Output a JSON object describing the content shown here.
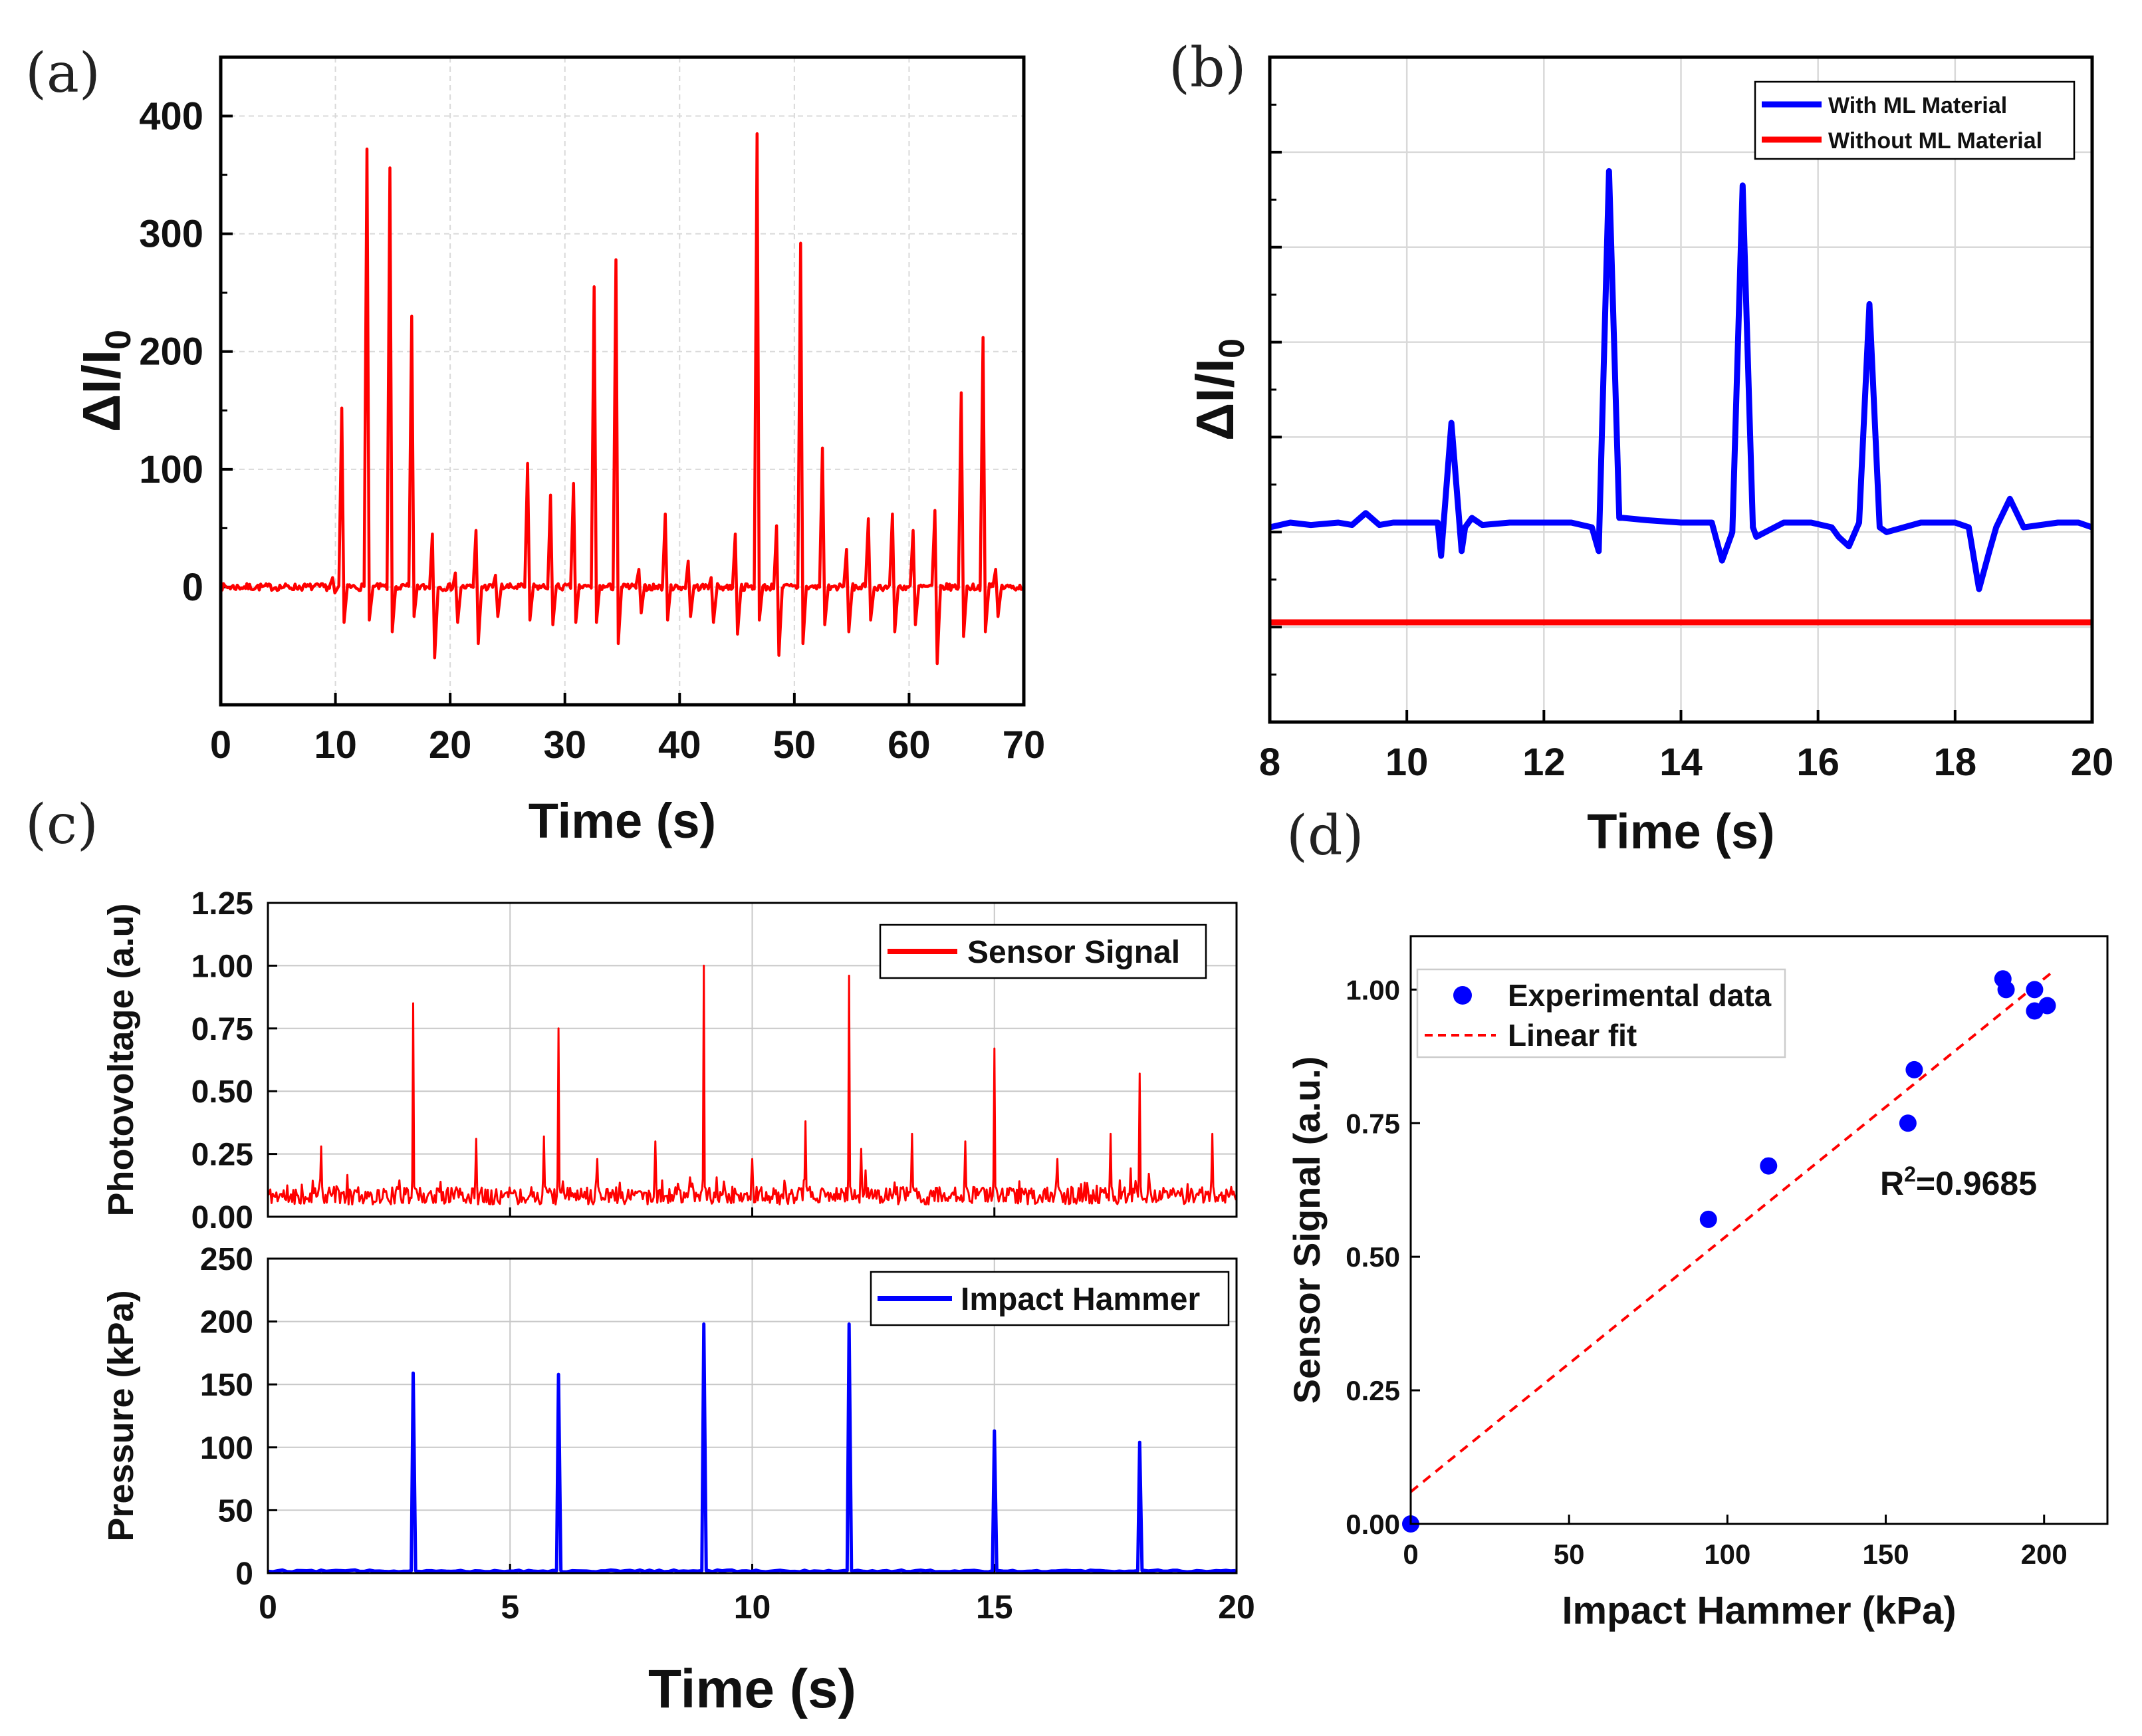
{
  "panel_labels": {
    "a": "(a)",
    "b": "(b)",
    "c": "(c)",
    "d": "(d)"
  },
  "chart_data": [
    {
      "panel": "(a)",
      "type": "line",
      "xlabel": "Time (s)",
      "ylabel": "ΔI/I",
      "ylabel_sub": "0",
      "xlim": [
        0,
        70
      ],
      "ylim": [
        -100,
        450
      ],
      "xticks": [
        0,
        10,
        20,
        30,
        40,
        50,
        60,
        70
      ],
      "yticks": [
        0,
        100,
        200,
        300,
        400
      ],
      "grid": true,
      "color": "#ff0000",
      "baseline": 0,
      "peaks": [
        {
          "t": 9.8,
          "up": 8,
          "down": -5
        },
        {
          "t": 10.6,
          "up": 152,
          "down": -30
        },
        {
          "t": 12.8,
          "up": 372,
          "down": -28
        },
        {
          "t": 14.8,
          "up": 356,
          "down": -38
        },
        {
          "t": 16.7,
          "up": 230,
          "down": -25
        },
        {
          "t": 18.5,
          "up": 45,
          "down": -60
        },
        {
          "t": 20.5,
          "up": 12,
          "down": -30
        },
        {
          "t": 22.3,
          "up": 48,
          "down": -48
        },
        {
          "t": 24.0,
          "up": 10,
          "down": -25
        },
        {
          "t": 26.8,
          "up": 105,
          "down": -28
        },
        {
          "t": 28.8,
          "up": 78,
          "down": -32
        },
        {
          "t": 30.8,
          "up": 88,
          "down": -30
        },
        {
          "t": 32.6,
          "up": 255,
          "down": -30
        },
        {
          "t": 34.5,
          "up": 278,
          "down": -48
        },
        {
          "t": 36.5,
          "up": 15,
          "down": -22
        },
        {
          "t": 38.8,
          "up": 62,
          "down": -28
        },
        {
          "t": 40.8,
          "up": 22,
          "down": -25
        },
        {
          "t": 42.8,
          "up": 8,
          "down": -30
        },
        {
          "t": 44.9,
          "up": 45,
          "down": -40
        },
        {
          "t": 46.8,
          "up": 385,
          "down": -28
        },
        {
          "t": 48.5,
          "up": 52,
          "down": -58
        },
        {
          "t": 50.6,
          "up": 292,
          "down": -48
        },
        {
          "t": 52.5,
          "up": 118,
          "down": -32
        },
        {
          "t": 54.6,
          "up": 32,
          "down": -38
        },
        {
          "t": 56.5,
          "up": 58,
          "down": -28
        },
        {
          "t": 58.6,
          "up": 62,
          "down": -38
        },
        {
          "t": 60.4,
          "up": 48,
          "down": -32
        },
        {
          "t": 62.3,
          "up": 65,
          "down": -65
        },
        {
          "t": 64.6,
          "up": 165,
          "down": -42
        },
        {
          "t": 66.5,
          "up": 212,
          "down": -38
        },
        {
          "t": 67.6,
          "up": 15,
          "down": -25
        }
      ]
    },
    {
      "panel": "(b)",
      "type": "line",
      "xlabel": "Time (s)",
      "ylabel": "ΔI/I",
      "ylabel_sub": "0",
      "xlim": [
        8,
        20
      ],
      "ylim": [
        -8,
        6
      ],
      "xticks": [
        8,
        10,
        12,
        14,
        16,
        18,
        20
      ],
      "yticks": [
        -8,
        -6,
        -4,
        -2,
        0,
        2,
        4,
        6
      ],
      "ytick_labels_shown": false,
      "grid": true,
      "legend": "top-right",
      "series": [
        {
          "name": "With ML Material",
          "color": "#0000ff",
          "x": [
            8.0,
            8.3,
            8.6,
            9.0,
            9.2,
            9.4,
            9.6,
            9.8,
            10.0,
            10.3,
            10.45,
            10.5,
            10.65,
            10.8,
            10.85,
            10.95,
            11.1,
            11.5,
            12.0,
            12.4,
            12.7,
            12.8,
            12.95,
            13.1,
            13.15,
            13.5,
            14.0,
            14.3,
            14.45,
            14.6,
            14.75,
            14.9,
            15.05,
            15.1,
            15.5,
            15.9,
            16.2,
            16.3,
            16.45,
            16.6,
            16.75,
            16.9,
            17.0,
            17.5,
            18.0,
            18.2,
            18.35,
            18.5,
            18.6,
            18.8,
            19.0,
            19.5,
            19.8,
            20.0
          ],
          "y": [
            -3.9,
            -3.8,
            -3.85,
            -3.8,
            -3.85,
            -3.6,
            -3.85,
            -3.8,
            -3.8,
            -3.8,
            -3.8,
            -4.5,
            -1.7,
            -4.4,
            -3.9,
            -3.7,
            -3.85,
            -3.8,
            -3.8,
            -3.8,
            -3.9,
            -4.4,
            3.6,
            -3.7,
            -3.7,
            -3.75,
            -3.8,
            -3.8,
            -3.8,
            -4.6,
            -4.0,
            3.3,
            -3.9,
            -4.1,
            -3.8,
            -3.8,
            -3.9,
            -4.1,
            -4.3,
            -3.8,
            0.8,
            -3.9,
            -4.0,
            -3.8,
            -3.8,
            -3.9,
            -5.2,
            -4.4,
            -3.9,
            -3.3,
            -3.9,
            -3.8,
            -3.8,
            -3.9
          ]
        },
        {
          "name": "Without ML Material",
          "color": "#ff0000",
          "x": [
            8.0,
            20.0
          ],
          "y": [
            -5.9,
            -5.9
          ]
        }
      ]
    },
    {
      "panel": "(c)",
      "type": "line",
      "xlabel": "Time (s)",
      "xlim": [
        0,
        20
      ],
      "xticks": [
        0,
        5,
        10,
        15,
        20
      ],
      "subplots": [
        {
          "ylabel": "Photovoltage (a.u)",
          "ylim": [
            0,
            1.25
          ],
          "yticks": [
            "0.00",
            "0.25",
            "0.50",
            "0.75",
            "1.00",
            "1.25"
          ],
          "legend": "top-right",
          "series_name": "Sensor Signal",
          "color": "#ff0000",
          "noise_baseline": 0.07,
          "peaks": [
            {
              "t": 1.1,
              "v": 0.28
            },
            {
              "t": 3.0,
              "v": 0.85
            },
            {
              "t": 4.3,
              "v": 0.31
            },
            {
              "t": 5.7,
              "v": 0.32
            },
            {
              "t": 6.0,
              "v": 0.75
            },
            {
              "t": 6.8,
              "v": 0.23
            },
            {
              "t": 8.0,
              "v": 0.3
            },
            {
              "t": 9.0,
              "v": 1.0
            },
            {
              "t": 10.0,
              "v": 0.23
            },
            {
              "t": 11.1,
              "v": 0.38
            },
            {
              "t": 12.0,
              "v": 0.96
            },
            {
              "t": 12.25,
              "v": 0.27
            },
            {
              "t": 13.3,
              "v": 0.33
            },
            {
              "t": 14.4,
              "v": 0.3
            },
            {
              "t": 15.0,
              "v": 0.67
            },
            {
              "t": 16.3,
              "v": 0.23
            },
            {
              "t": 17.4,
              "v": 0.33
            },
            {
              "t": 18.0,
              "v": 0.57
            },
            {
              "t": 19.5,
              "v": 0.33
            }
          ]
        },
        {
          "ylabel": "Pressure (kPa)",
          "ylim": [
            0,
            250
          ],
          "yticks": [
            "0",
            "50",
            "100",
            "150",
            "200",
            "250"
          ],
          "legend": "top-right",
          "series_name": "Impact Hammer",
          "color": "#0000ff",
          "peaks": [
            {
              "t": 3.0,
              "v": 159
            },
            {
              "t": 6.0,
              "v": 158
            },
            {
              "t": 9.0,
              "v": 198
            },
            {
              "t": 12.0,
              "v": 198
            },
            {
              "t": 15.0,
              "v": 113
            },
            {
              "t": 18.0,
              "v": 104
            }
          ]
        }
      ]
    },
    {
      "panel": "(d)",
      "type": "scatter",
      "xlabel": "Impact Hammer (kPa)",
      "ylabel": "Sensor Signal (a.u.)",
      "xlim": [
        0,
        220
      ],
      "ylim": [
        0,
        1.1
      ],
      "xticks": [
        "0",
        "50",
        "100",
        "150",
        "200"
      ],
      "yticks": [
        "0.00",
        "0.25",
        "0.50",
        "0.75",
        "1.00"
      ],
      "legend": "top-left",
      "annotation": "R",
      "annotation_sup": "2",
      "annotation_value": "=0.9685",
      "series": [
        {
          "name": "Experimental data",
          "color": "#0000ff",
          "x": [
            0,
            94,
            113,
            157,
            159,
            187,
            188,
            197,
            197,
            201
          ],
          "y": [
            0.0,
            0.57,
            0.67,
            0.75,
            0.85,
            1.02,
            1.0,
            1.0,
            0.96,
            0.97
          ]
        },
        {
          "name": "Linear fit",
          "color": "#ff0000",
          "style": "dashed",
          "x": [
            0,
            202
          ],
          "y": [
            0.06,
            1.03
          ]
        }
      ]
    }
  ]
}
